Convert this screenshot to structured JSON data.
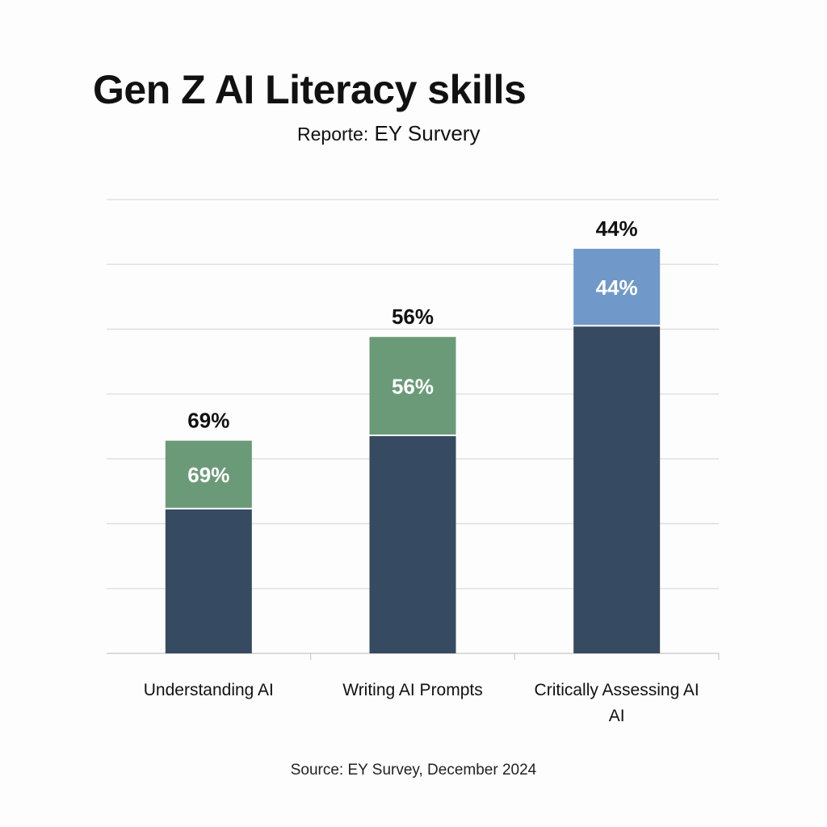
{
  "chart_data": {
    "type": "bar",
    "stacked": true,
    "title": "Gen Z AI Literacy skills",
    "subtitle_prefix": "Reporte:",
    "subtitle": "EY Survery",
    "source": "Source: EY Survey, December 2024",
    "categories": [
      "Understanding AI",
      "Writing AI Prompts",
      "Critically Assessing AI AI"
    ],
    "category_lines": [
      [
        "Understanding AI"
      ],
      [
        "Writing AI Prompts"
      ],
      [
        "Critically Assessing AI",
        "AI"
      ]
    ],
    "series": [
      {
        "name": "base",
        "color": "#364a61",
        "values": [
          2.22,
          3.35,
          5.04
        ]
      },
      {
        "name": "top",
        "colors": [
          "#6b9a78",
          "#6b9a78",
          "#7098c9"
        ],
        "values": [
          1.06,
          1.53,
          1.2
        ]
      }
    ],
    "inner_labels": [
      "69%",
      "56%",
      "44%"
    ],
    "top_labels": [
      "69%",
      "56%",
      "44%"
    ],
    "ylim": [
      0,
      7
    ],
    "grid": true,
    "gridline_count": 8,
    "xlabel": "",
    "ylabel": ""
  }
}
